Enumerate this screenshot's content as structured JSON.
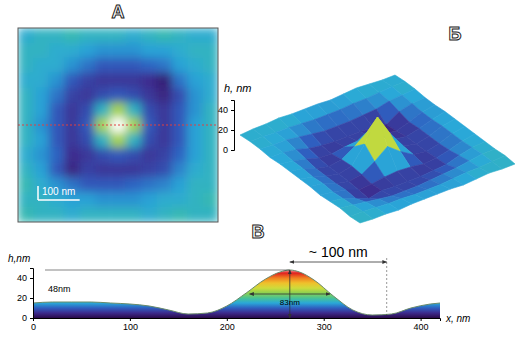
{
  "chart_data": [
    {
      "type": "heatmap",
      "title": "А",
      "xlim": [
        0,
        480
      ],
      "zlim": [
        0,
        48
      ],
      "tick_labels": false,
      "scale_bar": {
        "value": 100,
        "label": "100 nm"
      },
      "cells": [
        [
          15,
          16,
          16,
          17,
          16,
          16,
          16,
          15,
          16,
          17,
          16,
          15,
          15
        ],
        [
          16,
          16,
          15,
          15,
          14,
          13,
          13,
          13,
          14,
          14,
          15,
          16,
          16
        ],
        [
          16,
          15,
          15,
          13,
          11,
          9,
          9,
          9,
          10,
          11,
          14,
          15,
          16
        ],
        [
          15,
          15,
          13,
          9,
          7,
          6,
          6,
          6,
          5,
          3,
          11,
          14,
          15
        ],
        [
          16,
          14,
          11,
          7,
          6,
          8,
          9,
          8,
          6,
          4,
          8,
          13,
          15
        ],
        [
          16,
          14,
          9,
          6,
          8,
          16,
          26,
          16,
          8,
          6,
          9,
          13,
          16
        ],
        [
          16,
          13,
          9,
          6,
          9,
          26,
          48,
          26,
          9,
          6,
          9,
          14,
          16
        ],
        [
          16,
          14,
          9,
          6,
          8,
          16,
          26,
          16,
          8,
          6,
          9,
          14,
          16
        ],
        [
          15,
          13,
          10,
          5,
          6,
          8,
          9,
          8,
          6,
          7,
          10,
          14,
          16
        ],
        [
          16,
          14,
          9,
          4,
          7,
          6,
          6,
          6,
          7,
          8,
          12,
          15,
          16
        ],
        [
          17,
          15,
          13,
          11,
          9,
          9,
          9,
          10,
          11,
          12,
          14,
          16,
          16
        ],
        [
          16,
          16,
          15,
          14,
          14,
          13,
          13,
          13,
          14,
          15,
          15,
          16,
          17
        ],
        [
          17,
          16,
          16,
          15,
          16,
          16,
          16,
          16,
          15,
          16,
          17,
          16,
          16
        ]
      ]
    },
    {
      "type": "surface",
      "title": "Б",
      "z_label": "h, nm",
      "zlim": [
        0,
        50
      ],
      "zticks": [
        0,
        20,
        40
      ],
      "cells": [
        [
          15,
          16,
          16,
          17,
          16,
          16,
          16,
          15,
          16,
          17,
          16,
          15,
          15
        ],
        [
          16,
          16,
          15,
          15,
          14,
          13,
          13,
          13,
          14,
          14,
          15,
          16,
          16
        ],
        [
          16,
          15,
          15,
          13,
          11,
          9,
          9,
          9,
          10,
          11,
          14,
          15,
          16
        ],
        [
          15,
          15,
          13,
          9,
          7,
          6,
          6,
          6,
          5,
          3,
          11,
          14,
          15
        ],
        [
          16,
          14,
          11,
          7,
          6,
          8,
          9,
          8,
          6,
          4,
          8,
          13,
          15
        ],
        [
          16,
          14,
          9,
          6,
          8,
          16,
          26,
          16,
          8,
          6,
          9,
          13,
          16
        ],
        [
          16,
          13,
          9,
          6,
          9,
          26,
          48,
          26,
          9,
          6,
          9,
          14,
          16
        ],
        [
          16,
          14,
          9,
          6,
          8,
          16,
          26,
          16,
          8,
          6,
          9,
          14,
          16
        ],
        [
          15,
          13,
          10,
          5,
          6,
          8,
          9,
          8,
          6,
          7,
          10,
          14,
          16
        ],
        [
          16,
          14,
          9,
          4,
          7,
          6,
          6,
          6,
          7,
          8,
          12,
          15,
          16
        ],
        [
          17,
          15,
          13,
          11,
          9,
          9,
          9,
          10,
          11,
          12,
          14,
          16,
          16
        ],
        [
          16,
          16,
          15,
          14,
          14,
          13,
          13,
          13,
          14,
          15,
          15,
          16,
          17
        ],
        [
          17,
          16,
          16,
          15,
          16,
          16,
          16,
          16,
          15,
          16,
          17,
          16,
          16
        ]
      ]
    },
    {
      "type": "area",
      "title": "В",
      "x_label": "x, nm",
      "y_label": "h,nm",
      "x": [
        0,
        20,
        40,
        60,
        80,
        100,
        120,
        140,
        160,
        180,
        200,
        220,
        240,
        255,
        265,
        275,
        290,
        310,
        330,
        350,
        370,
        390,
        410,
        420
      ],
      "values": [
        15,
        16,
        16,
        16,
        15,
        14,
        12,
        8,
        4,
        5,
        12,
        25,
        39,
        46,
        48,
        46,
        38,
        22,
        8,
        3,
        4,
        10,
        14,
        15
      ],
      "xlim": [
        0,
        420
      ],
      "ylim": [
        0,
        50
      ],
      "xticks": [
        0,
        100,
        200,
        300,
        400
      ],
      "yticks": [
        0,
        20,
        40
      ],
      "annotations": [
        {
          "label": "48nm",
          "value": 48
        },
        {
          "label": "83nm",
          "value": 83
        },
        {
          "label": "~ 100 nm",
          "value": 100
        }
      ]
    }
  ]
}
